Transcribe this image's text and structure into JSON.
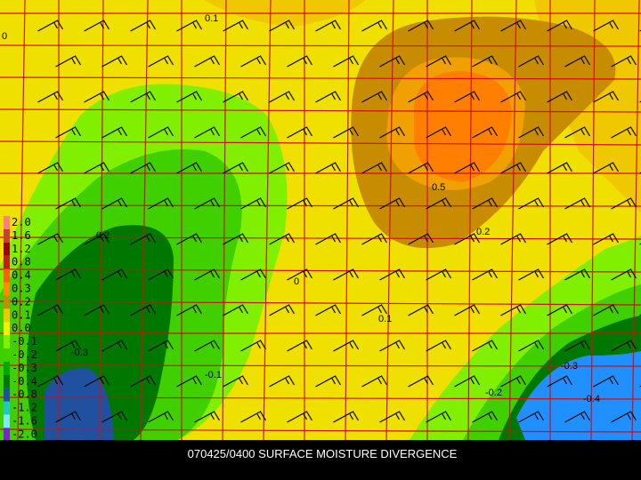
{
  "caption": "070425/0400 SURFACE MOISTURE DIVERGENCE",
  "legend": [
    {
      "label": "2.0",
      "color": "#ff7f7f"
    },
    {
      "label": "1.6",
      "color": "#c84030"
    },
    {
      "label": "1.2",
      "color": "#a00000"
    },
    {
      "label": "0.8",
      "color": "#c02010"
    },
    {
      "label": "0.4",
      "color": "#ff6000"
    },
    {
      "label": "0.3",
      "color": "#ff8c00"
    },
    {
      "label": "0.2",
      "color": "#c88c00"
    },
    {
      "label": "0.1",
      "color": "#f0c800"
    },
    {
      "label": "0.0",
      "color": "#f0f000"
    },
    {
      "label": "-0.1",
      "color": "#80f000"
    },
    {
      "label": "-0.2",
      "color": "#40d000"
    },
    {
      "label": "-0.3",
      "color": "#00a800"
    },
    {
      "label": "-0.4",
      "color": "#007800"
    },
    {
      "label": "-0.8",
      "color": "#2050a0"
    },
    {
      "label": "-1.2",
      "color": "#20c8c8"
    },
    {
      "label": "-1.6",
      "color": "#80e8ff"
    },
    {
      "label": "-2.0",
      "color": "#8020d0"
    }
  ],
  "contour_labels": [
    "0.1",
    "0",
    "0.5",
    "0.2",
    "0.2",
    "0",
    "0.1",
    "-0.3",
    "-0.1",
    "-0.2",
    "-0.3",
    "-0.4"
  ]
}
